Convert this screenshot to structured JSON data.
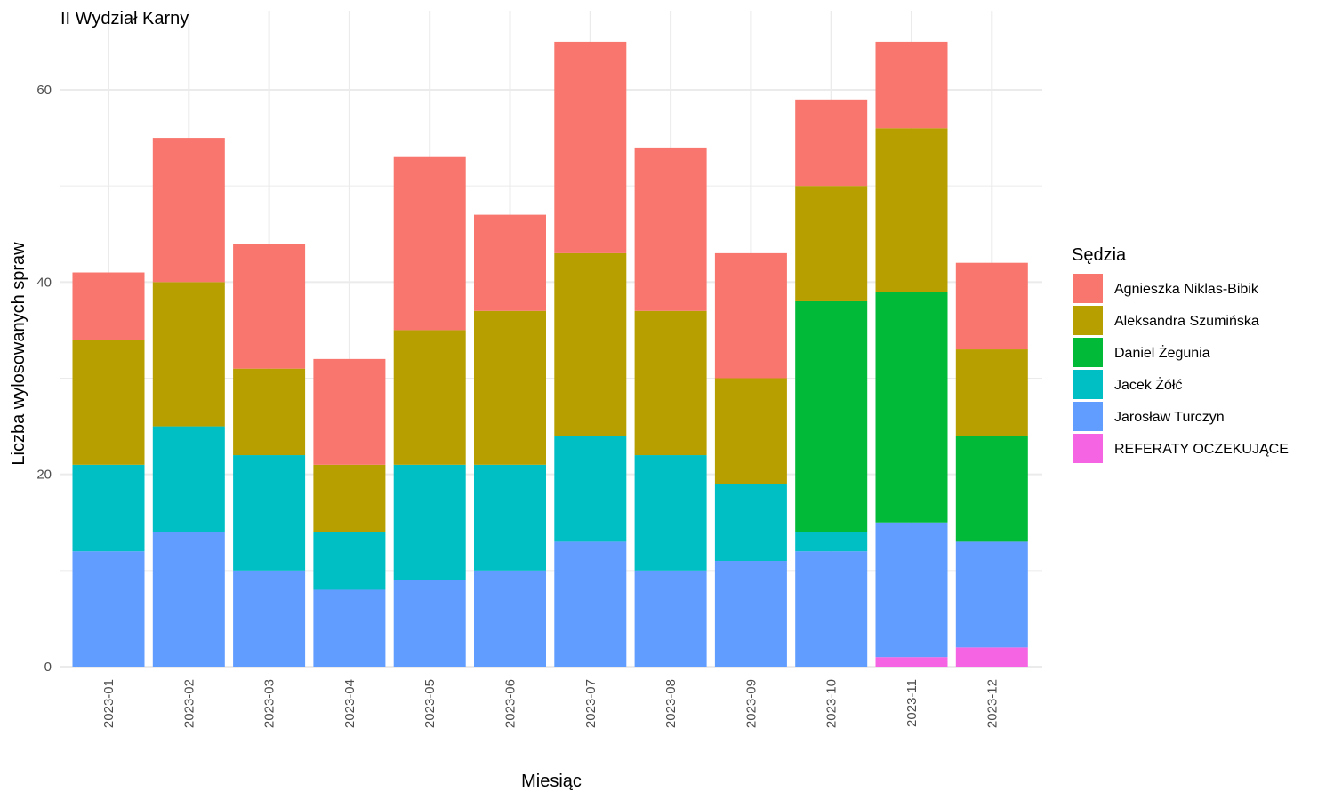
{
  "chart_data": {
    "type": "bar",
    "stacked": true,
    "title": "II Wydział Karny",
    "xlabel": "Miesiąc",
    "ylabel": "Liczba wylosowanych spraw",
    "ylim": [
      0,
      65
    ],
    "yticks": [
      0,
      20,
      40,
      60
    ],
    "grid": true,
    "legend_position": "right",
    "legend_title": "Sędzia",
    "categories": [
      "2023-01",
      "2023-02",
      "2023-03",
      "2023-04",
      "2023-05",
      "2023-06",
      "2023-07",
      "2023-08",
      "2023-09",
      "2023-10",
      "2023-11",
      "2023-12"
    ],
    "series": [
      {
        "name": "Agnieszka Niklas-Bibik",
        "color": "#F8766D",
        "values": [
          7,
          15,
          13,
          11,
          18,
          10,
          22,
          17,
          13,
          9,
          9,
          9
        ]
      },
      {
        "name": "Aleksandra Szumińska",
        "color": "#B79F00",
        "values": [
          13,
          15,
          9,
          7,
          14,
          16,
          19,
          15,
          11,
          12,
          17,
          9
        ]
      },
      {
        "name": "Daniel Żegunia",
        "color": "#00BA38",
        "values": [
          0,
          0,
          0,
          0,
          0,
          0,
          0,
          0,
          0,
          24,
          24,
          11
        ]
      },
      {
        "name": "Jacek Żółć",
        "color": "#00BFC4",
        "values": [
          9,
          11,
          12,
          6,
          12,
          11,
          11,
          12,
          8,
          2,
          0,
          0
        ]
      },
      {
        "name": "Jarosław Turczyn",
        "color": "#619CFF",
        "values": [
          12,
          14,
          10,
          8,
          9,
          10,
          13,
          10,
          11,
          12,
          14,
          11
        ]
      },
      {
        "name": "REFERATY OCZEKUJĄCE",
        "color": "#F564E3",
        "values": [
          0,
          0,
          0,
          0,
          0,
          0,
          0,
          0,
          0,
          0,
          1,
          2
        ]
      }
    ]
  }
}
